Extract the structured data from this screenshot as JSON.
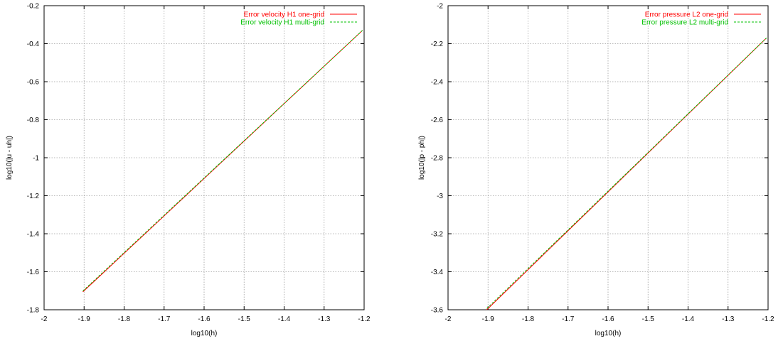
{
  "chart_data": [
    {
      "type": "line",
      "title": "",
      "xlabel": "log10(h)",
      "ylabel": "log10(|u - uh|)",
      "xlim": [
        -2,
        -1.2
      ],
      "ylim": [
        -1.8,
        -0.2
      ],
      "xticks": [
        -2,
        -1.9,
        -1.8,
        -1.7,
        -1.6,
        -1.5,
        -1.4,
        -1.3,
        -1.2
      ],
      "yticks": [
        -1.8,
        -1.6,
        -1.4,
        -1.2,
        -1,
        -0.8,
        -0.6,
        -0.4,
        -0.2
      ],
      "grid": true,
      "legend_position": "top-right",
      "series": [
        {
          "name": "Error velocity H1 one-grid",
          "color": "#ff0000",
          "dash": "solid",
          "x": [
            -1.9031,
            -1.2041
          ],
          "y": [
            -1.706,
            -0.33
          ]
        },
        {
          "name": "Error velocity H1 multi-grid",
          "color": "#00c000",
          "dash": "dashed",
          "x": [
            -1.9031,
            -1.2041
          ],
          "y": [
            -1.701,
            -0.33
          ]
        }
      ]
    },
    {
      "type": "line",
      "title": "",
      "xlabel": "log10(h)",
      "ylabel": "log10(|p - ph|)",
      "xlim": [
        -2,
        -1.2
      ],
      "ylim": [
        -3.6,
        -2
      ],
      "xticks": [
        -2,
        -1.9,
        -1.8,
        -1.7,
        -1.6,
        -1.5,
        -1.4,
        -1.3,
        -1.2
      ],
      "yticks": [
        -3.6,
        -3.4,
        -3.2,
        -3,
        -2.8,
        -2.6,
        -2.4,
        -2.2,
        -2
      ],
      "grid": true,
      "legend_position": "top-right",
      "series": [
        {
          "name": "Error pressure L2 one-grid",
          "color": "#ff0000",
          "dash": "solid",
          "x": [
            -1.9031,
            -1.2041
          ],
          "y": [
            -3.6,
            -2.17
          ]
        },
        {
          "name": "Error pressure L2 multi-grid",
          "color": "#00c000",
          "dash": "dashed",
          "x": [
            -1.9031,
            -1.2041
          ],
          "y": [
            -3.593,
            -2.17
          ]
        }
      ]
    }
  ]
}
